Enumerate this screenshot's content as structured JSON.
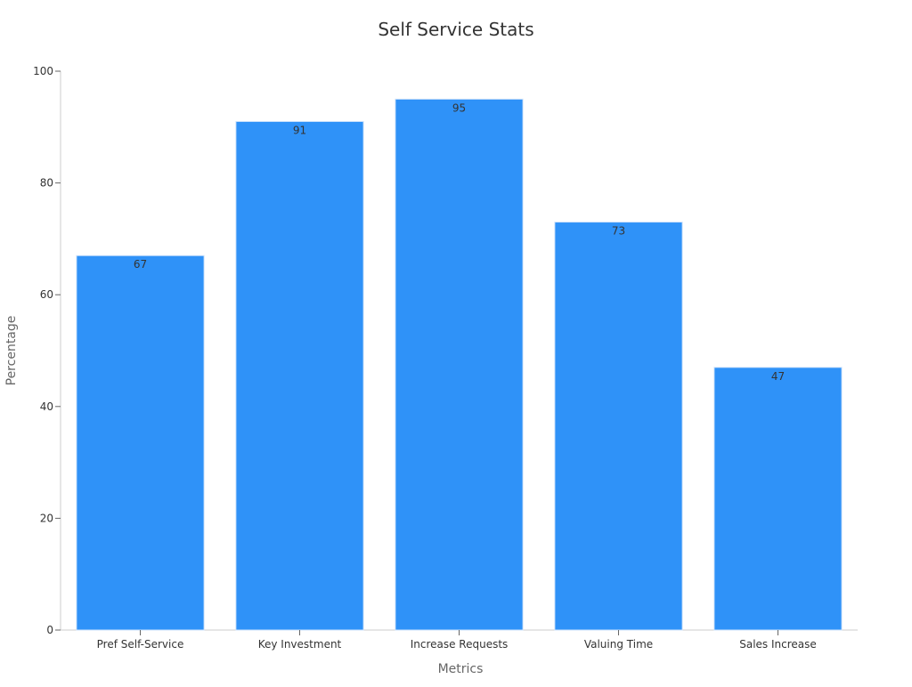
{
  "chart_data": {
    "type": "bar",
    "title": "Self Service Stats",
    "xlabel": "Metrics",
    "ylabel": "Percentage",
    "categories": [
      "Pref Self-Service",
      "Key Investment",
      "Increase Requests",
      "Valuing Time",
      "Sales Increase"
    ],
    "values": [
      67,
      91,
      95,
      73,
      47
    ],
    "ylim": [
      0,
      100
    ],
    "yticks": [
      0,
      20,
      40,
      60,
      80,
      100
    ],
    "grid": false,
    "legend": "none",
    "bar_color": "#2f92f8"
  }
}
